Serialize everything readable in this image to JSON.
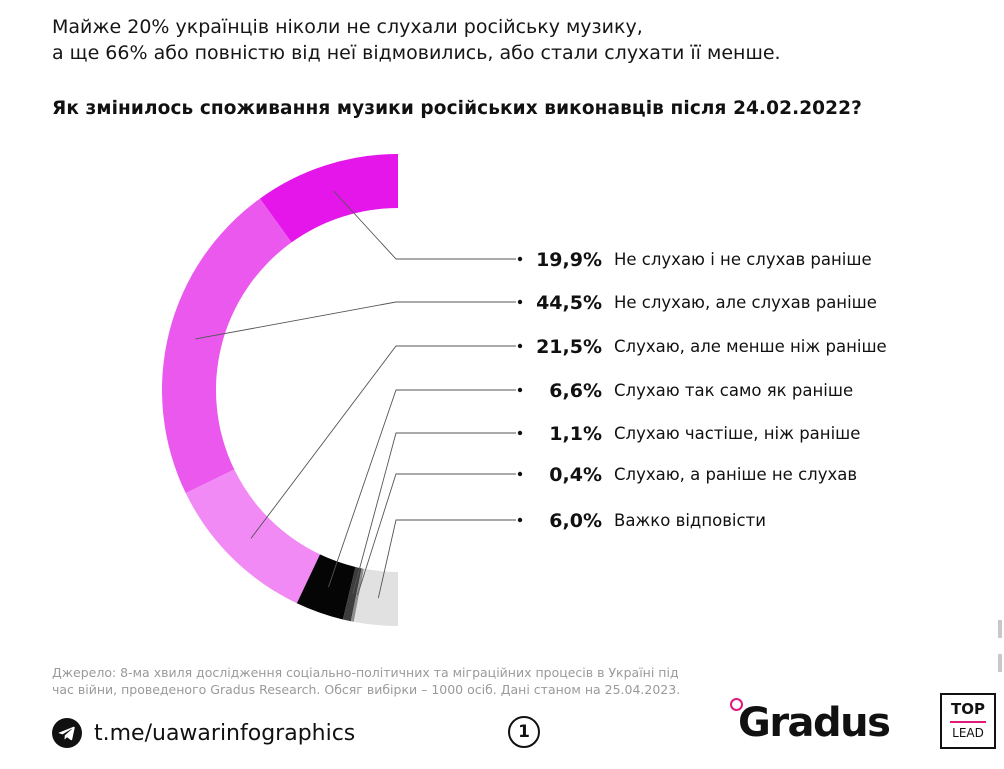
{
  "headline": {
    "line1": "Майже 20% українців ніколи не слухали російську музику,",
    "line2": "а ще 66% або повністю від неї відмовились, або стали слухати її менше."
  },
  "chart_data": {
    "type": "donut-half",
    "title": "Як змінилось споживання музики російських виконавців після 24.02.2022?",
    "categories": [
      "Не слухаю і не слухав раніше",
      "Не слухаю, але слухав раніше",
      "Слухаю, але менше ніж раніше",
      "Слухаю так само як раніше",
      "Слухаю частіше, ніж раніше",
      "Слухаю, а раніше не слухав",
      "Важко відповісти"
    ],
    "values": [
      19.9,
      44.5,
      21.5,
      6.6,
      1.1,
      0.4,
      6.0
    ],
    "value_labels": [
      "19,9%",
      "44,5%",
      "21,5%",
      "6,6%",
      "1,1%",
      "0,4%",
      "6,0%"
    ],
    "colors": [
      "#e516e9",
      "#ea58ee",
      "#f18af4",
      "#050505",
      "#3d3d3d",
      "#8d8d8d",
      "#e1e1e1"
    ],
    "unit": "%"
  },
  "source": {
    "line1": "Джерело: 8-ма хвиля дослідження соціально-політичних та міграційних процесів в Україні під",
    "line2": "час війни, проведеного Gradus Research. Обсяг вибірки – 1000 осіб. Дані станом на 25.04.2023."
  },
  "footer": {
    "link": "t.me/uawarinfographics",
    "page_number": "1",
    "brand": "Gradus",
    "badge_top": "TOP",
    "badge_bottom": "LEAD"
  },
  "icons": {
    "telegram": "telegram-icon"
  }
}
